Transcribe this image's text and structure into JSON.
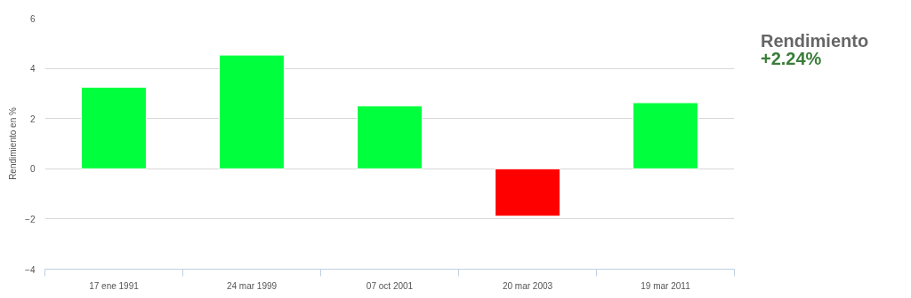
{
  "chart_data": {
    "type": "bar",
    "ylabel": "Rendimiento en %",
    "categories": [
      "17 ene 1991",
      "24 mar 1999",
      "07 oct 2001",
      "20 mar 2003",
      "19 mar 2011"
    ],
    "values": [
      3.25,
      4.53,
      2.51,
      -1.89,
      2.63
    ],
    "colors": [
      "#00ff3c",
      "#00ff3c",
      "#00ff3c",
      "#ff0000",
      "#00ff3c"
    ],
    "ylim": [
      -4,
      6
    ],
    "yticks": [
      -4,
      -2,
      0,
      2,
      4,
      6
    ],
    "grid": "y",
    "annotations": [
      "Rendimiento",
      "+2.24%"
    ]
  }
}
